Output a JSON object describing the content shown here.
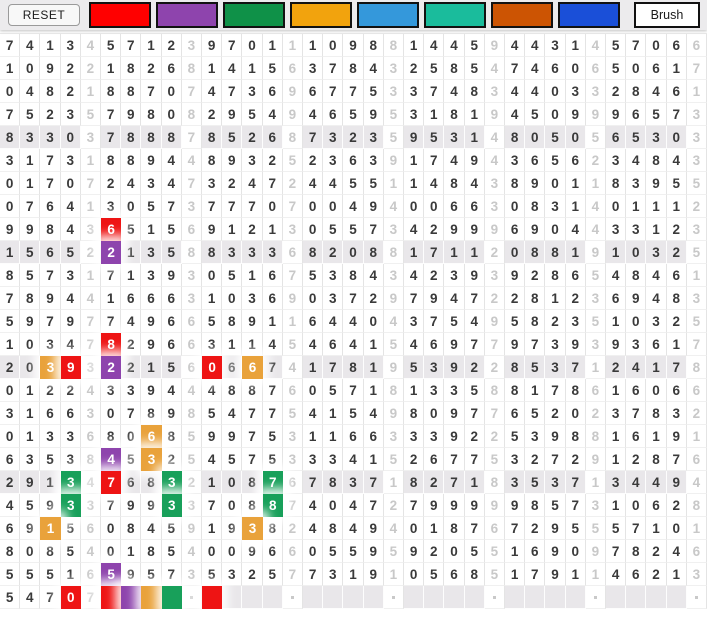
{
  "toolbar": {
    "reset_label": "RESET",
    "brush_label": "Brush",
    "palette": [
      {
        "name": "red",
        "hex": "#FF0000"
      },
      {
        "name": "purple",
        "hex": "#8E44AD"
      },
      {
        "name": "green",
        "hex": "#0F9148"
      },
      {
        "name": "orange",
        "hex": "#F2A30D"
      },
      {
        "name": "light-blue",
        "hex": "#3498DB"
      },
      {
        "name": "teal",
        "hex": "#1ABC9C"
      },
      {
        "name": "rust",
        "hex": "#CC5403"
      },
      {
        "name": "blue",
        "hex": "#1A4FD8"
      }
    ]
  },
  "grid": {
    "columns": 35,
    "group_size": 5,
    "shaded_bg": "#E9E7EA",
    "mark_colors": {
      "red": "#EE1414",
      "purple": "#8E44AD",
      "green": "#18A05A",
      "orange": "#E9A23B"
    },
    "rows": [
      {
        "d": "74134571239701110988144594431457066"
      },
      {
        "d": "10922182681415637843258547460650617"
      },
      {
        "d": "04821887074736967753374834403328461"
      },
      {
        "d": "75235798082954946595318194509996573"
      },
      {
        "d": "83303788878526873235953148050565303",
        "shaded": true
      },
      {
        "d": "31731889448932523639174943656234843"
      },
      {
        "d": "01707243473247244551148438901183955"
      },
      {
        "d": "07641305737770700494006630831401112"
      },
      {
        "d": "99843651569121305573429996904433123",
        "marks": {
          "6": "red"
        }
      },
      {
        "d": "15652213588333682088171120881910325",
        "shaded": true,
        "marks": {
          "6": "purple"
        }
      },
      {
        "d": "85731713930516753843423939286548461"
      },
      {
        "d": "78944166631036903729794722812369483"
      },
      {
        "d": "59797749665891164404375495823510325"
      },
      {
        "d": "10347829663114546415469779739393617",
        "marks": {
          "6": "red"
        }
      },
      {
        "d": "20393221560667417819539228537124178",
        "shaded": true,
        "marks": {
          "3": "orange",
          "4": "red",
          "6": "purple",
          "11": "red",
          "13": "orange"
        }
      },
      {
        "d": "01224339444887605718133588178616066"
      },
      {
        "d": "31663078985477541549809776520237832"
      },
      {
        "d": "01336806859975311663339225398816191",
        "marks": {
          "8": "orange"
        }
      },
      {
        "d": "63538453254575333415267753272912876",
        "marks": {
          "6": "purple",
          "8": "orange"
        }
      },
      {
        "d": "29134768321087678371827183537134494",
        "shaded": true,
        "marks": {
          "4": "green",
          "6": "red",
          "9": "green",
          "14": "green"
        }
      },
      {
        "d": "45933799337088740472799999857310628",
        "marks": {
          "4": "green",
          "9": "green",
          "14": "green"
        }
      },
      {
        "d": "69156084591938248494018767295557101",
        "marks": {
          "3": "orange",
          "13": "orange"
        }
      },
      {
        "d": "80854018540096605595920551690978246"
      },
      {
        "d": "55516595735325773191056851791146213",
        "marks": {
          "6": "purple"
        }
      },
      {
        "d": "54707    .    .    .    .    .    .",
        "bottom": true,
        "marks": {
          "4": "red",
          "6": "red",
          "7": "purple",
          "8": "orange",
          "9": "green",
          "11": "red"
        }
      }
    ]
  }
}
